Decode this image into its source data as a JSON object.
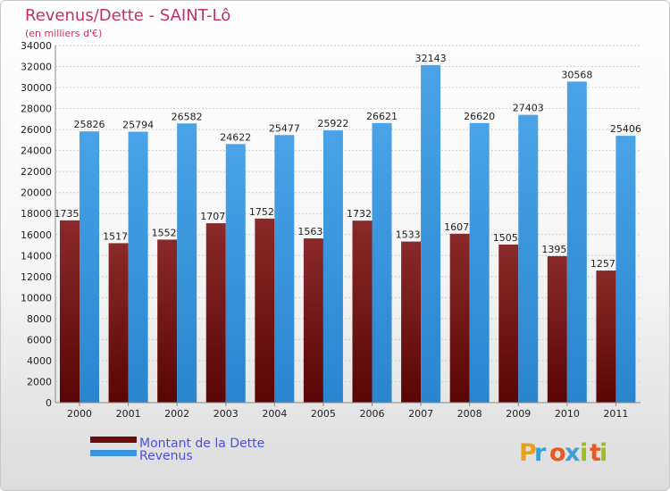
{
  "chart_data": {
    "type": "bar",
    "title": "Revenus/Dette - SAINT-Lô",
    "subtitle": "(en milliers d'€)",
    "categories": [
      "2000",
      "2001",
      "2002",
      "2003",
      "2004",
      "2005",
      "2006",
      "2007",
      "2008",
      "2009",
      "2010",
      "2011"
    ],
    "series": [
      {
        "name": "Montant de la Dette",
        "color": "#6a0f10",
        "values": [
          17353,
          15179,
          15520,
          17079,
          17525,
          15636,
          17326,
          15333,
          16079,
          15054,
          13950,
          12575
        ],
        "labels": [
          "17353",
          "15179",
          "15520",
          "17079",
          "17525",
          "15636",
          "17326",
          "15333",
          "16079",
          "15054",
          "13950",
          "12575"
        ]
      },
      {
        "name": "Revenus",
        "color": "#3a97df",
        "values": [
          25826,
          25794,
          26582,
          24622,
          25477,
          25922,
          26621,
          32143,
          26620,
          27403,
          30568,
          25406
        ],
        "labels": [
          "25826",
          "25794",
          "26582",
          "24622",
          "25477",
          "25922",
          "26621",
          "32143",
          "26620",
          "27403",
          "30568",
          "25406"
        ]
      }
    ],
    "ylim": [
      0,
      34000
    ],
    "yticks": [
      "0",
      "2000",
      "4000",
      "6000",
      "8000",
      "10000",
      "12000",
      "14000",
      "16000",
      "18000",
      "20000",
      "22000",
      "24000",
      "26000",
      "28000",
      "30000",
      "32000",
      "34000"
    ],
    "grid": true,
    "legend_position": "bottom-left"
  },
  "logo": {
    "letters": [
      "P",
      "r",
      "o",
      "x",
      "i",
      "t",
      "i"
    ],
    "colors": [
      "#e8a020",
      "#3aa0d8",
      "#e85a20",
      "#40a0d8",
      "#9ac020",
      "#e85a20",
      "#9ac020"
    ]
  }
}
